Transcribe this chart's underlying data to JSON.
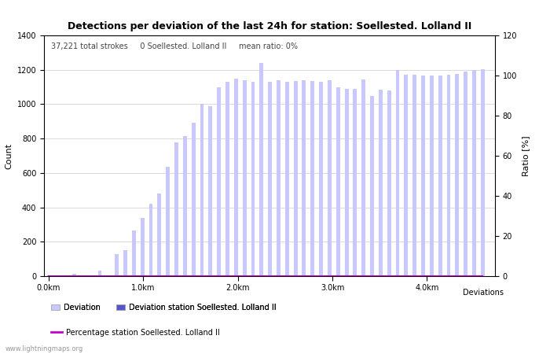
{
  "title": "Detections per deviation of the last 24h for station: Soellested. Lolland II",
  "annotation": "37,221 total strokes     0 Soellested. Lolland II     mean ratio: 0%",
  "xlabel": "Deviations",
  "ylabel_left": "Count",
  "ylabel_right": "Ratio [%]",
  "ylim_left": [
    0,
    1400
  ],
  "ylim_right": [
    0,
    120
  ],
  "bar_color_light": "#c8c8ff",
  "bar_color_dark": "#5555cc",
  "line_color": "#cc00cc",
  "background_color": "#ffffff",
  "watermark": "www.lightningmaps.org",
  "xtick_labels": [
    "0.0km",
    "1.0km",
    "2.0km",
    "3.0km",
    "4.0km"
  ],
  "xtick_positions": [
    0.0,
    1.0,
    2.0,
    3.0,
    4.0
  ],
  "yticks_left": [
    0,
    200,
    400,
    600,
    800,
    1000,
    1200,
    1400
  ],
  "yticks_right": [
    0,
    20,
    40,
    60,
    80,
    100,
    120
  ],
  "deviation_values": [
    5,
    0,
    0,
    15,
    0,
    0,
    30,
    0,
    130,
    150,
    265,
    340,
    420,
    480,
    635,
    780,
    815,
    890,
    1000,
    990,
    1100,
    1130,
    1150,
    1140,
    1130,
    1240,
    1130,
    1140,
    1130,
    1135,
    1140,
    1135,
    1130,
    1140,
    1100,
    1090,
    1090,
    1145,
    1050,
    1085,
    1080,
    1200,
    1170,
    1170,
    1165,
    1165,
    1165,
    1170,
    1175,
    1190,
    1200,
    1205
  ],
  "station_values": [
    0,
    0,
    0,
    0,
    0,
    0,
    0,
    0,
    0,
    0,
    0,
    0,
    0,
    0,
    0,
    0,
    0,
    0,
    0,
    0,
    0,
    0,
    0,
    0,
    0,
    0,
    0,
    0,
    0,
    0,
    0,
    0,
    0,
    0,
    0,
    0,
    0,
    0,
    0,
    0,
    0,
    0,
    0,
    0,
    0,
    0,
    0,
    0,
    0,
    0,
    0,
    0
  ],
  "x_start": 0.0,
  "x_step": 0.09,
  "xlim": [
    -0.05,
    4.72
  ]
}
